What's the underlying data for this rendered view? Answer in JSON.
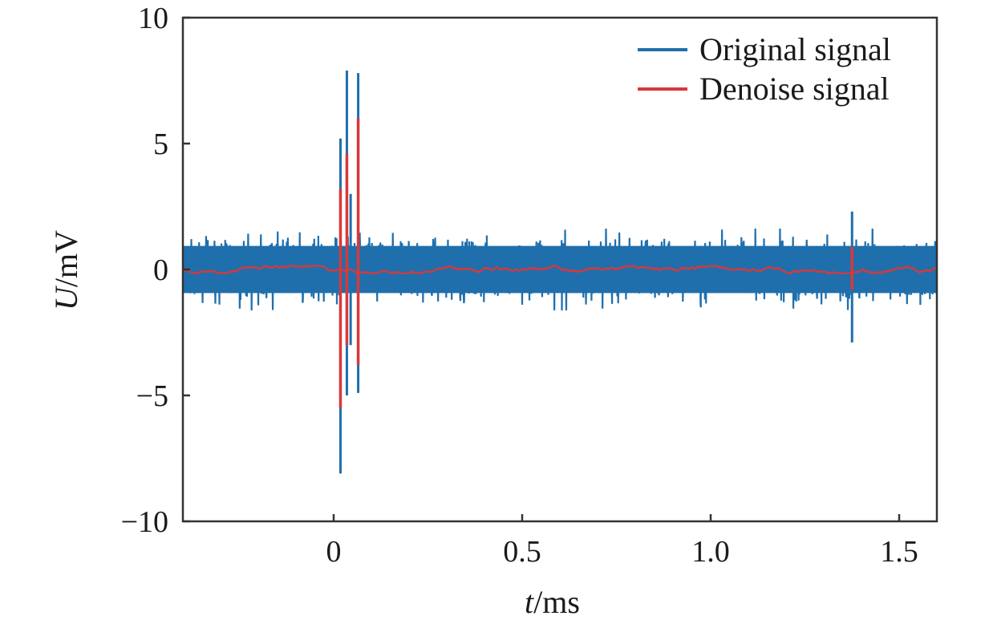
{
  "chart_data": {
    "type": "line",
    "xlim": [
      -0.4,
      1.6
    ],
    "ylim": [
      -10,
      10
    ],
    "xticks": [
      0,
      0.5,
      1.0,
      1.5
    ],
    "xtick_labels": [
      "0",
      "0.5",
      "1.0",
      "1.5"
    ],
    "yticks": [
      10,
      5,
      0,
      -5,
      -10
    ],
    "ytick_labels": [
      "10",
      "5",
      "0",
      "−5",
      "−10"
    ],
    "xlabel": {
      "italic": "t",
      "unit": "/ms"
    },
    "ylabel": {
      "italic": "U",
      "unit": "/mV"
    },
    "grid": false,
    "legend_position": "top-right",
    "series": [
      {
        "name": "Original signal",
        "color": "#1f6fad",
        "description_values": {
          "noise_band": [
            -1.3,
            1.3
          ],
          "spikes": [
            {
              "x": 0.018,
              "y": [
                -8.1,
                5.2
              ]
            },
            {
              "x": 0.035,
              "y": [
                -5.0,
                7.9
              ]
            },
            {
              "x": 0.045,
              "y": [
                -3.0,
                3.0
              ]
            },
            {
              "x": 0.065,
              "y": [
                -4.9,
                7.8
              ]
            },
            {
              "x": 1.375,
              "y": [
                -2.9,
                2.3
              ]
            }
          ]
        }
      },
      {
        "name": "Denoise signal",
        "color": "#d9383a",
        "description_values": {
          "baseline": [
            -0.15,
            0.15
          ],
          "spikes": [
            {
              "x": 0.018,
              "y": [
                -5.5,
                3.2
              ]
            },
            {
              "x": 0.035,
              "y": [
                -3.0,
                4.6
              ]
            },
            {
              "x": 0.065,
              "y": [
                -3.8,
                6.0
              ]
            },
            {
              "x": 1.375,
              "y": [
                -0.8,
                0.9
              ]
            }
          ]
        }
      }
    ]
  }
}
